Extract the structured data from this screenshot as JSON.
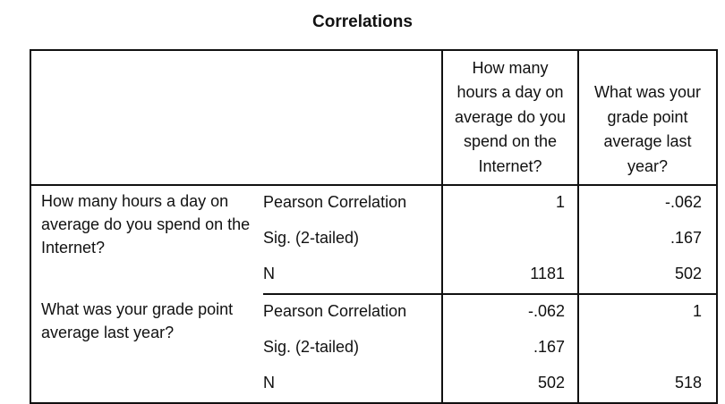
{
  "title": "Correlations",
  "columns": {
    "var1": "How many hours a day on average do you spend on the Internet?",
    "var2": "What was your grade point average last year?"
  },
  "rows": [
    {
      "label": "How many hours a day on average do you spend on the Internet?",
      "pearson_label": "Pearson Correlation",
      "pearson_v1": "1",
      "pearson_v2": "-.062",
      "sig_label": "Sig. (2-tailed)",
      "sig_v1": "",
      "sig_v2": ".167",
      "n_label": "N",
      "n_v1": "1181",
      "n_v2": "502"
    },
    {
      "label": "What was your grade point average last year?",
      "pearson_label": "Pearson Correlation",
      "pearson_v1": "-.062",
      "pearson_v2": "1",
      "sig_label": "Sig. (2-tailed)",
      "sig_v1": ".167",
      "sig_v2": "",
      "n_label": "N",
      "n_v1": "502",
      "n_v2": "518"
    }
  ]
}
